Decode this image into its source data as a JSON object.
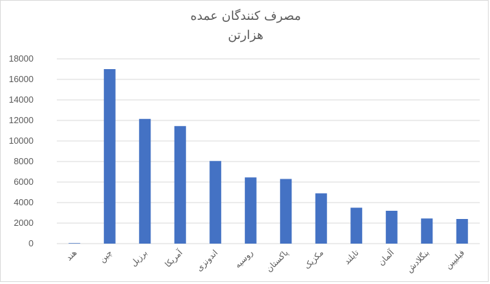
{
  "chart_data": {
    "type": "bar",
    "title": "مصرف کنندگان عمده",
    "subtitle": "هزارتن",
    "xlabel": "",
    "ylabel": "",
    "categories": [
      "هند",
      "چین",
      "برزیل",
      "آمریکا",
      "اندونزی",
      "روسیه",
      "پاکستان",
      "مکزیک",
      "تایلند",
      "آلمان",
      "بنگلادش",
      "فیلیپین"
    ],
    "values": [
      50,
      17000,
      12150,
      11450,
      8050,
      6450,
      6300,
      4900,
      3500,
      3200,
      2450,
      2400
    ],
    "ylim": [
      0,
      18000
    ],
    "yticks": [
      0,
      2000,
      4000,
      6000,
      8000,
      10000,
      12000,
      14000,
      16000,
      18000
    ],
    "grid": true,
    "legend": "none",
    "bar_color": "#4472c4"
  }
}
